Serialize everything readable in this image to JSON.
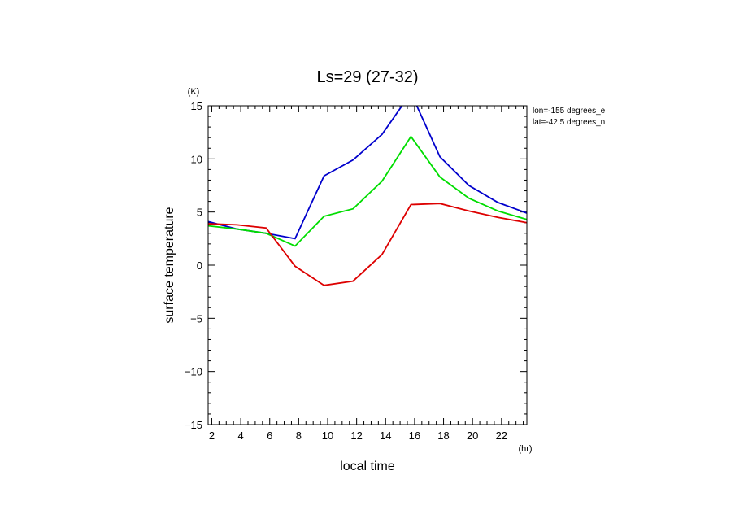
{
  "chart_data": {
    "type": "line",
    "title": "Ls=29 (27-32)",
    "xlabel": "local time",
    "ylabel": "surface temperature",
    "x_unit": "(hr)",
    "y_unit": "(K)",
    "annotations": [
      "lon=-155 degrees_e",
      "lat=-42.5 degrees_n"
    ],
    "xlim": [
      1.75,
      23.75
    ],
    "ylim": [
      -15,
      15
    ],
    "x_ticks": [
      2,
      4,
      6,
      8,
      10,
      12,
      14,
      16,
      18,
      20,
      22
    ],
    "y_ticks": [
      -15,
      -10,
      -5,
      0,
      5,
      10,
      15
    ],
    "x": [
      1.75,
      3.75,
      5.75,
      7.75,
      9.75,
      11.75,
      13.75,
      15.75,
      17.75,
      19.75,
      21.75,
      23.75
    ],
    "series": [
      {
        "color": "#0000cc",
        "values": [
          4.1,
          3.4,
          3.0,
          2.5,
          8.4,
          9.9,
          12.3,
          16.2,
          10.2,
          7.5,
          5.9,
          4.9
        ]
      },
      {
        "color": "#00dd00",
        "values": [
          3.7,
          3.4,
          3.0,
          1.8,
          4.6,
          5.3,
          7.9,
          12.1,
          8.3,
          6.3,
          5.1,
          4.3
        ]
      },
      {
        "color": "#dd0000",
        "values": [
          3.9,
          3.8,
          3.5,
          -0.1,
          -1.9,
          -1.5,
          1.0,
          5.7,
          5.8,
          5.1,
          4.5,
          4.0
        ]
      }
    ],
    "grid": false,
    "legend": "none"
  }
}
